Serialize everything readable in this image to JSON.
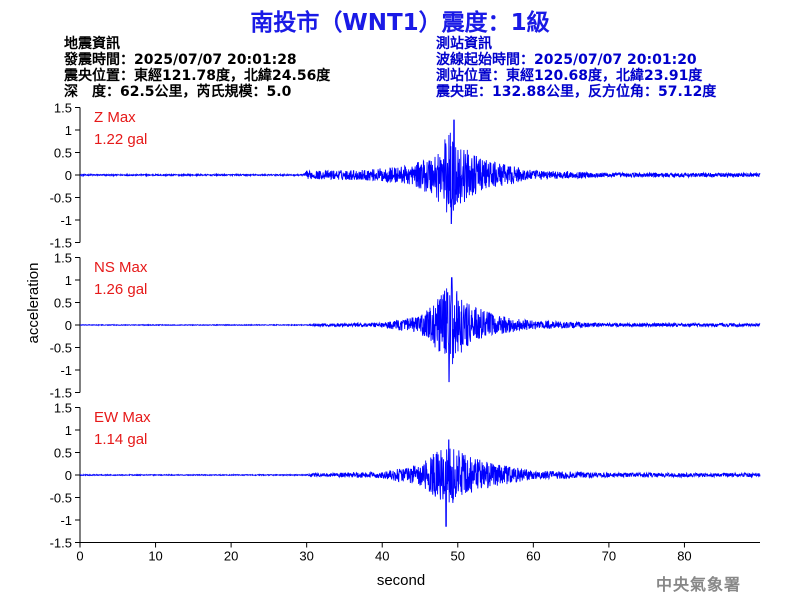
{
  "title": "南投市（WNT1）震度：1級",
  "quake_info": {
    "heading": "地震資訊",
    "origin_time": "發震時間：2025/07/07 20:01:28",
    "epicenter": "震央位置：東經121.78度，北緯24.56度",
    "depth_magnitude": "深　度：62.5公里，芮氏規模：5.0"
  },
  "station_info": {
    "heading": "測站資訊",
    "wave_start": "波線起始時間：2025/07/07 20:01:20",
    "location": "測站位置：東經120.68度，北緯23.91度",
    "distance_azimuth": "震央距：132.88公里，反方位角：57.12度"
  },
  "footer": "中央氣象署",
  "colors": {
    "title": "#1a1ae6",
    "trace": "#0000ff",
    "max_label": "#e61919",
    "station_text": "#0000cc",
    "footer": "#888888"
  },
  "chart_data": {
    "type": "line",
    "xlabel": "second",
    "ylabel": "acceleration",
    "xlim": [
      0,
      90
    ],
    "x_ticks": [
      0,
      10,
      20,
      30,
      40,
      50,
      60,
      70,
      80
    ],
    "ylim": [
      -1.5,
      1.5
    ],
    "y_ticks": [
      1.5,
      1,
      0.5,
      0,
      -0.5,
      -1,
      -1.5
    ],
    "y_tick_labels": [
      "1.5",
      "1",
      "0.5",
      "0",
      "-0.5",
      "-1",
      "-1.5"
    ],
    "grid": false,
    "series": [
      {
        "name": "Z",
        "max_label": "Z Max",
        "max_value_label": "1.22 gal",
        "peak_time": 49.5,
        "peak_up": 1.22,
        "peak_down": -1.08,
        "onset": 30,
        "envelope": [
          [
            0,
            0.015
          ],
          [
            29.5,
            0.015
          ],
          [
            30,
            0.09
          ],
          [
            38,
            0.12
          ],
          [
            44,
            0.22
          ],
          [
            47,
            0.5
          ],
          [
            49,
            1.0
          ],
          [
            50,
            0.75
          ],
          [
            52,
            0.45
          ],
          [
            55,
            0.28
          ],
          [
            60,
            0.1
          ],
          [
            70,
            0.05
          ],
          [
            90,
            0.045
          ]
        ]
      },
      {
        "name": "NS",
        "max_label": "NS Max",
        "max_value_label": "1.26 gal",
        "peak_time": 49.2,
        "peak_up": 1.05,
        "peak_down": -1.26,
        "onset": 30,
        "envelope": [
          [
            0,
            0.008
          ],
          [
            30,
            0.008
          ],
          [
            31,
            0.03
          ],
          [
            40,
            0.05
          ],
          [
            45,
            0.2
          ],
          [
            47,
            0.5
          ],
          [
            49,
            0.95
          ],
          [
            51,
            0.5
          ],
          [
            55,
            0.22
          ],
          [
            60,
            0.1
          ],
          [
            70,
            0.04
          ],
          [
            90,
            0.035
          ]
        ]
      },
      {
        "name": "EW",
        "max_label": "EW Max",
        "max_value_label": "1.14 gal",
        "peak_time": 48.8,
        "peak_up": 0.78,
        "peak_down": -1.14,
        "onset": 30,
        "envelope": [
          [
            0,
            0.01
          ],
          [
            30,
            0.01
          ],
          [
            31,
            0.04
          ],
          [
            40,
            0.07
          ],
          [
            45,
            0.25
          ],
          [
            47,
            0.5
          ],
          [
            49,
            0.7
          ],
          [
            51,
            0.45
          ],
          [
            55,
            0.25
          ],
          [
            60,
            0.1
          ],
          [
            70,
            0.05
          ],
          [
            90,
            0.04
          ]
        ]
      }
    ]
  }
}
